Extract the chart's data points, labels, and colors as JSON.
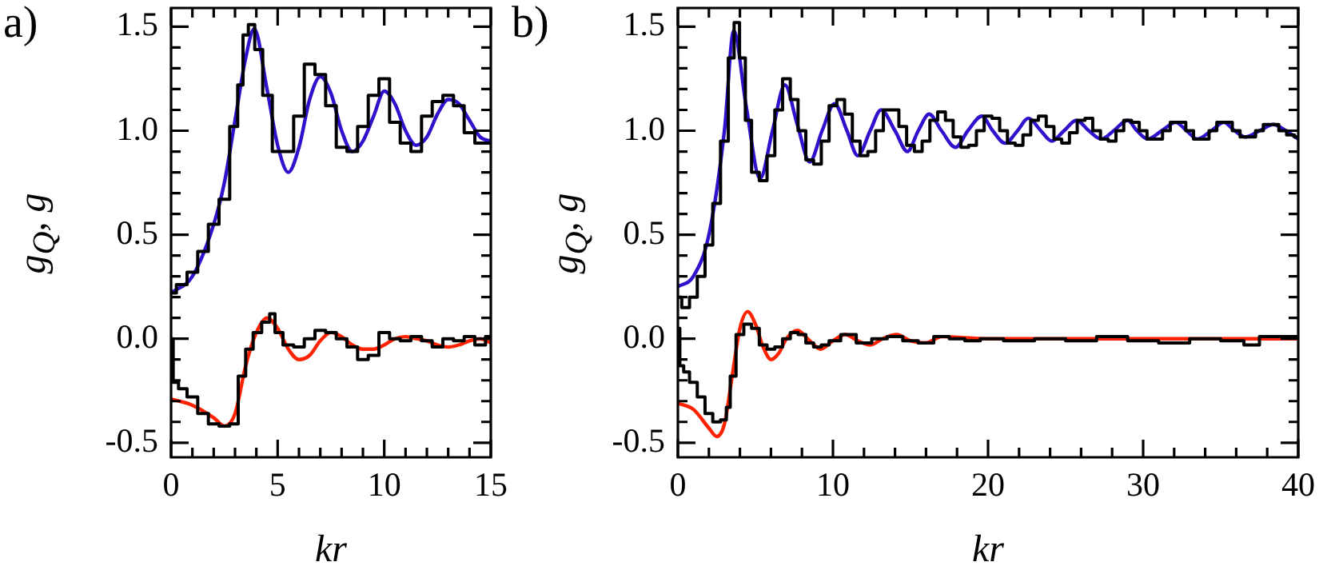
{
  "chart_data": [
    {
      "type": "line",
      "title": "a)",
      "xlabel": "kr",
      "ylabel": "g$_{Q}$, g",
      "xlim": [
        0,
        15
      ],
      "ylim": [
        -0.57,
        1.59
      ],
      "xticks": [
        0,
        {
          "value": 1,
          "label": null
        },
        {
          "value": 2,
          "label": null
        },
        {
          "value": 3,
          "label": null
        },
        {
          "value": 4,
          "label": null
        },
        5,
        {
          "value": 6,
          "label": null
        },
        {
          "value": 7,
          "label": null
        },
        {
          "value": 8,
          "label": null
        },
        {
          "value": 9,
          "label": null
        },
        10,
        {
          "value": 11,
          "label": null
        },
        {
          "value": 12,
          "label": null
        },
        {
          "value": 13,
          "label": null
        },
        {
          "value": 14,
          "label": null
        },
        15
      ],
      "yticks": [
        {
          "value": -0.5,
          "label": "-0.5"
        },
        {
          "value": -0.4,
          "label": null
        },
        {
          "value": -0.3,
          "label": null
        },
        {
          "value": -0.2,
          "label": null
        },
        {
          "value": -0.1,
          "label": null
        },
        {
          "value": 0,
          "label": "0.0"
        },
        {
          "value": 0.1,
          "label": null
        },
        {
          "value": 0.2,
          "label": null
        },
        {
          "value": 0.3,
          "label": null
        },
        {
          "value": 0.4,
          "label": null
        },
        {
          "value": 0.5,
          "label": "0.5"
        },
        {
          "value": 0.6,
          "label": null
        },
        {
          "value": 0.7,
          "label": null
        },
        {
          "value": 0.8,
          "label": null
        },
        {
          "value": 0.9,
          "label": null
        },
        {
          "value": 1,
          "label": "1.0"
        },
        {
          "value": 1.1,
          "label": null
        },
        {
          "value": 1.2,
          "label": null
        },
        {
          "value": 1.3,
          "label": null
        },
        {
          "value": 1.4,
          "label": null
        },
        {
          "value": 1.5,
          "label": "1.5"
        }
      ],
      "series": [
        {
          "type": "step",
          "color": "#000000",
          "x": [
            0,
            0.5,
            1,
            1.5,
            2,
            2.5,
            3,
            3.25,
            3.5,
            3.75,
            4.1,
            4.5,
            5,
            5.5,
            6,
            6.5,
            7,
            7.5,
            8,
            8.5,
            9,
            9.5,
            10,
            10.5,
            11,
            11.5,
            12,
            12.5,
            13,
            13.5,
            14,
            14.5,
            15
          ],
          "values": [
            0.22,
            0.26,
            0.32,
            0.42,
            0.55,
            0.67,
            1.02,
            1.22,
            1.46,
            1.51,
            1.39,
            1.17,
            0.9,
            0.9,
            1.07,
            1.32,
            1.27,
            1.12,
            0.92,
            0.9,
            1.02,
            1.17,
            1.25,
            1.04,
            0.94,
            0.9,
            1.07,
            1.14,
            1.17,
            1.12,
            0.99,
            0.94,
            0.94
          ]
        },
        {
          "type": "line",
          "color": "#3311cc",
          "x": [
            0,
            1,
            2,
            2.5,
            3,
            3.5,
            3.9,
            4.5,
            5,
            5.5,
            6,
            6.5,
            7,
            7.5,
            8,
            8.5,
            9,
            9.5,
            10,
            10.5,
            11,
            11.5,
            12,
            12.5,
            13,
            13.5,
            14,
            14.5,
            15
          ],
          "values": [
            0.22,
            0.3,
            0.55,
            0.75,
            1.05,
            1.35,
            1.49,
            1.2,
            0.93,
            0.8,
            0.92,
            1.15,
            1.26,
            1.18,
            1.0,
            0.9,
            0.95,
            1.07,
            1.19,
            1.13,
            1.0,
            0.93,
            0.97,
            1.08,
            1.15,
            1.13,
            1.05,
            0.97,
            0.95
          ]
        },
        {
          "type": "step",
          "color": "#000000",
          "x": [
            0,
            0.2,
            0.5,
            1,
            1.5,
            2,
            2.5,
            3,
            3.3,
            3.7,
            4,
            4.5,
            4.75,
            5,
            5.5,
            6,
            6.5,
            7,
            7.5,
            8,
            8.5,
            9,
            9.5,
            10,
            10.5,
            11,
            11.5,
            12,
            12.5,
            13,
            13.5,
            14,
            14.5,
            15
          ],
          "values": [
            0,
            -0.21,
            -0.24,
            -0.28,
            -0.36,
            -0.41,
            -0.42,
            -0.41,
            -0.18,
            -0.05,
            0.03,
            0.08,
            0.12,
            0.03,
            -0.03,
            -0.04,
            0,
            0.04,
            0.03,
            0,
            -0.04,
            -0.1,
            -0.08,
            0.03,
            0,
            -0.01,
            0.01,
            -0.01,
            -0.04,
            0,
            -0.01,
            0.01,
            -0.03,
            0.01
          ]
        },
        {
          "type": "line",
          "color": "#ff2200",
          "x": [
            0,
            1,
            2,
            2.5,
            3,
            3.5,
            4,
            4.5,
            5,
            5.5,
            6,
            6.5,
            7,
            7.5,
            8,
            8.5,
            9,
            9.5,
            10,
            10.5,
            11,
            11.5,
            12,
            12.5,
            13,
            13.5,
            14,
            14.5,
            15
          ],
          "values": [
            -0.29,
            -0.32,
            -0.38,
            -0.42,
            -0.36,
            -0.13,
            0.03,
            0.1,
            0.05,
            -0.05,
            -0.1,
            -0.08,
            -0.01,
            0.03,
            0.01,
            -0.03,
            -0.05,
            -0.05,
            -0.03,
            0,
            0.01,
            0,
            -0.01,
            -0.03,
            -0.04,
            -0.03,
            -0.01,
            0,
            -0.02
          ]
        }
      ]
    },
    {
      "type": "line",
      "title": "b)",
      "xlabel": "kr",
      "ylabel": "g$_{Q}$, g",
      "xlim": [
        0,
        40
      ],
      "ylim": [
        -0.57,
        1.59
      ],
      "xticks": [
        0,
        {
          "value": 2,
          "label": null
        },
        {
          "value": 4,
          "label": null
        },
        {
          "value": 6,
          "label": null
        },
        {
          "value": 8,
          "label": null
        },
        10,
        {
          "value": 12,
          "label": null
        },
        {
          "value": 14,
          "label": null
        },
        {
          "value": 16,
          "label": null
        },
        {
          "value": 18,
          "label": null
        },
        20,
        {
          "value": 22,
          "label": null
        },
        {
          "value": 24,
          "label": null
        },
        {
          "value": 26,
          "label": null
        },
        {
          "value": 28,
          "label": null
        },
        30,
        {
          "value": 32,
          "label": null
        },
        {
          "value": 34,
          "label": null
        },
        {
          "value": 36,
          "label": null
        },
        {
          "value": 38,
          "label": null
        },
        40
      ],
      "yticks": [
        {
          "value": -0.5,
          "label": "-0.5"
        },
        {
          "value": -0.4,
          "label": null
        },
        {
          "value": -0.3,
          "label": null
        },
        {
          "value": -0.2,
          "label": null
        },
        {
          "value": -0.1,
          "label": null
        },
        {
          "value": 0,
          "label": "0.0"
        },
        {
          "value": 0.1,
          "label": null
        },
        {
          "value": 0.2,
          "label": null
        },
        {
          "value": 0.3,
          "label": null
        },
        {
          "value": 0.4,
          "label": null
        },
        {
          "value": 0.5,
          "label": "0.5"
        },
        {
          "value": 0.6,
          "label": null
        },
        {
          "value": 0.7,
          "label": null
        },
        {
          "value": 0.8,
          "label": null
        },
        {
          "value": 0.9,
          "label": null
        },
        {
          "value": 1,
          "label": "1.0"
        },
        {
          "value": 1.1,
          "label": null
        },
        {
          "value": 1.2,
          "label": null
        },
        {
          "value": 1.3,
          "label": null
        },
        {
          "value": 1.4,
          "label": null
        },
        {
          "value": 1.5,
          "label": "1.5"
        }
      ],
      "series": [
        {
          "type": "step",
          "color": "#000000",
          "x": [
            0,
            0.5,
            1,
            1.5,
            2,
            2.5,
            3,
            3.5,
            3.75,
            4.2,
            4.5,
            5,
            5.5,
            6,
            6.5,
            7,
            7.5,
            8,
            8.5,
            9,
            9.5,
            10,
            10.5,
            11,
            11.5,
            12,
            12.5,
            13,
            13.5,
            14,
            14.5,
            15,
            15.5,
            16,
            16.5,
            17,
            17.5,
            18,
            18.5,
            19,
            19.5,
            20,
            20.5,
            21,
            21.5,
            22,
            22.5,
            23,
            23.5,
            24,
            24.5,
            25,
            25.5,
            26,
            26.5,
            27,
            27.5,
            28,
            28.5,
            29,
            29.5,
            30,
            30.5,
            31,
            31.5,
            32,
            32.5,
            33,
            33.5,
            34,
            34.5,
            35,
            35.5,
            36,
            36.5,
            37,
            37.5,
            38,
            38.5,
            39,
            39.5,
            40
          ],
          "values": [
            0.2,
            0.15,
            0.2,
            0.3,
            0.45,
            0.65,
            0.95,
            1.35,
            1.52,
            1.35,
            1.05,
            0.8,
            0.76,
            0.88,
            1.1,
            1.25,
            1.15,
            1.0,
            0.86,
            0.84,
            0.95,
            1.12,
            1.15,
            1.08,
            0.95,
            0.88,
            0.9,
            1.0,
            1.1,
            1.1,
            1.02,
            0.93,
            0.9,
            0.95,
            1.05,
            1.09,
            1.05,
            0.97,
            0.92,
            0.93,
            1.0,
            1.07,
            1.06,
            1.0,
            0.94,
            0.93,
            0.98,
            1.05,
            1.07,
            1.02,
            0.96,
            0.94,
            0.99,
            1.05,
            1.06,
            1.0,
            0.96,
            0.95,
            1.0,
            1.05,
            1.04,
            1.0,
            0.96,
            0.96,
            1.0,
            1.04,
            1.04,
            1.0,
            0.96,
            0.96,
            1.0,
            1.04,
            1.04,
            1.0,
            0.97,
            0.97,
            1.0,
            1.03,
            1.03,
            1.0,
            0.98,
            0.97
          ]
        },
        {
          "type": "line",
          "color": "#3311cc",
          "x": [
            0,
            1,
            2,
            3,
            3.6,
            4.4,
            5.3,
            6.1,
            6.9,
            7.7,
            8.5,
            9.3,
            10.1,
            10.9,
            11.6,
            12.4,
            13.1,
            14,
            14.8,
            15.5,
            16.2,
            17,
            17.9,
            18.7,
            19.6,
            20.3,
            21.1,
            21.9,
            22.6,
            23.4,
            24.1,
            24.9,
            25.7,
            26.5,
            27.3,
            28.1,
            29,
            29.6,
            30.3,
            31.2,
            32.1,
            32.8,
            33.5,
            34.4,
            35.2,
            35.9,
            36.6,
            37.5,
            38.4,
            39.2,
            40
          ],
          "values": [
            0.25,
            0.3,
            0.5,
            1.0,
            1.48,
            1.12,
            0.77,
            1.0,
            1.22,
            1.03,
            0.85,
            1.0,
            1.13,
            1.0,
            0.88,
            1.0,
            1.1,
            1.0,
            0.9,
            1.0,
            1.08,
            1.0,
            0.92,
            1.0,
            1.07,
            1.0,
            0.94,
            1.0,
            1.06,
            1.0,
            0.95,
            1.0,
            1.05,
            1.0,
            0.96,
            1.0,
            1.05,
            1.0,
            0.96,
            1.0,
            1.04,
            1.0,
            0.96,
            1.0,
            1.04,
            1.0,
            0.97,
            1.0,
            1.03,
            1.0,
            0.96
          ]
        },
        {
          "type": "step",
          "color": "#000000",
          "x": [
            0,
            0.25,
            0.5,
            1,
            1.5,
            2,
            2.5,
            3,
            3.25,
            3.5,
            4,
            4.5,
            5,
            5.5,
            6,
            6.5,
            7,
            7.5,
            8,
            8.5,
            9,
            9.5,
            10,
            11,
            12,
            13,
            14,
            15,
            16,
            17,
            18,
            19,
            20,
            22,
            24,
            26,
            28,
            30,
            32,
            34,
            36,
            37,
            38,
            40
          ],
          "values": [
            0.05,
            -0.13,
            -0.16,
            -0.21,
            -0.28,
            -0.36,
            -0.4,
            -0.39,
            -0.33,
            -0.18,
            0.02,
            0.07,
            0.05,
            -0.03,
            -0.05,
            -0.04,
            0,
            0.03,
            0.02,
            -0.02,
            -0.04,
            -0.03,
            -0.01,
            0.02,
            -0.02,
            0,
            0.01,
            -0.01,
            -0.02,
            0.01,
            0,
            -0.01,
            0,
            -0.01,
            0,
            -0.01,
            0.01,
            -0.01,
            -0.02,
            0,
            -0.01,
            -0.03,
            0.01,
            0.01
          ]
        },
        {
          "type": "line",
          "color": "#ff2200",
          "x": [
            0,
            1,
            2,
            2.5,
            3,
            3.5,
            4,
            4.5,
            5,
            5.5,
            6,
            6.5,
            7,
            7.7,
            8.5,
            9.2,
            10,
            10.8,
            11.6,
            12.4,
            13.2,
            14.1,
            15,
            16,
            17,
            20,
            25,
            30,
            35,
            40
          ],
          "values": [
            -0.31,
            -0.34,
            -0.43,
            -0.47,
            -0.41,
            -0.18,
            0.05,
            0.13,
            0.07,
            -0.04,
            -0.1,
            -0.07,
            0,
            0.04,
            -0.01,
            -0.05,
            -0.01,
            0.02,
            -0.01,
            -0.03,
            0,
            0.02,
            -0.01,
            -0.02,
            0.01,
            0,
            0,
            0,
            0,
            0
          ]
        }
      ]
    }
  ]
}
